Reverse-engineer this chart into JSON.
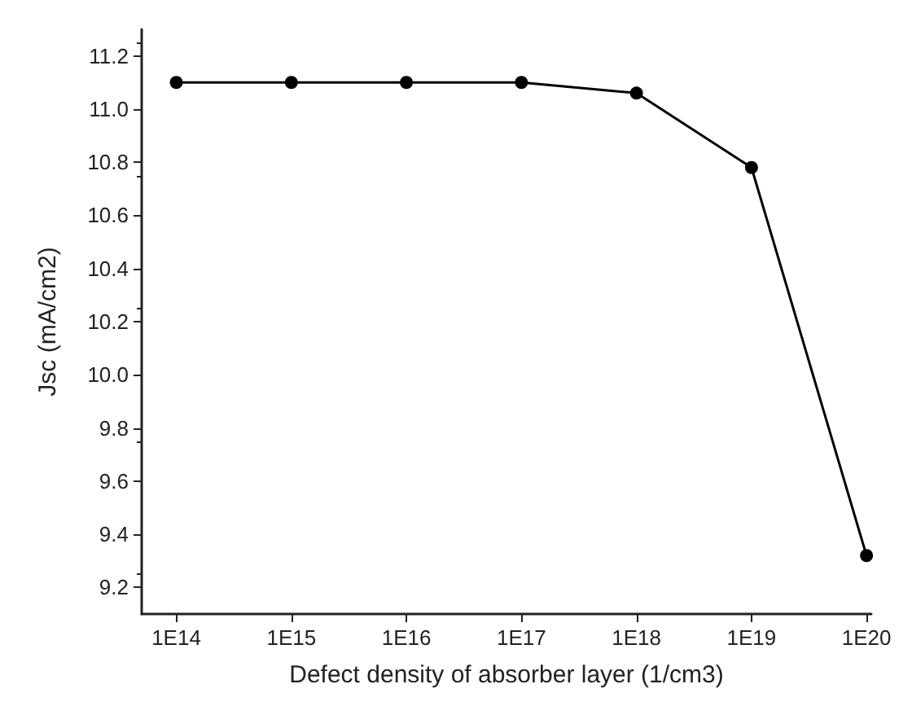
{
  "chart_data": {
    "type": "line",
    "xlabel": "Defect density of absorber layer (1/cm3)",
    "ylabel": "Jsc (mA/cm2)",
    "x": [
      100000000000000.0,
      1000000000000000.0,
      1e+16,
      1e+17,
      1e+18,
      1e+19,
      1e+20
    ],
    "series": [
      {
        "color": "#000000",
        "values": [
          11.1,
          11.1,
          11.1,
          11.1,
          11.06,
          10.78,
          9.32
        ]
      }
    ],
    "log": "x",
    "xlim": [
      50000000000000.0,
      1.1e+20
    ],
    "xticks": [
      {
        "value": 100000000000000.0,
        "label": "1E14"
      },
      {
        "value": 1000000000000000.0,
        "label": "1E15"
      },
      {
        "value": 1e+16,
        "label": "1E16"
      },
      {
        "value": 1e+17,
        "label": "1E17"
      },
      {
        "value": 1e+18,
        "label": "1E18"
      },
      {
        "value": 1e+19,
        "label": "1E19"
      },
      {
        "value": 1e+20,
        "label": "1E20"
      }
    ],
    "ylim": [
      9.1,
      11.3
    ],
    "yticks": [
      9.2,
      9.4,
      9.6,
      9.8,
      {
        "value": 10,
        "label": "10.0"
      },
      10.2,
      10.4,
      10.6,
      10.8,
      {
        "value": 11,
        "label": "11.0"
      },
      11.2
    ],
    "grid": false,
    "marker": "circle",
    "line_style": "solid"
  }
}
